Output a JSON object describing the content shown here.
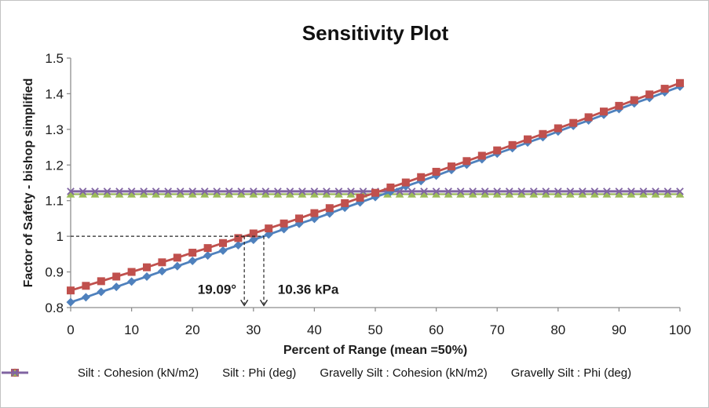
{
  "chart_data": {
    "type": "line",
    "title": "Sensitivity Plot",
    "xlabel": "Percent of Range (mean =50%)",
    "ylabel": "Factor of Safety - bishop simplified",
    "xlim": [
      0,
      100
    ],
    "ylim": [
      0.8,
      1.5
    ],
    "grid": false,
    "legend_position": "bottom",
    "x_ticks": [
      0,
      10,
      20,
      30,
      40,
      50,
      60,
      70,
      80,
      90,
      100
    ],
    "y_tick_values": [
      0.8,
      0.9,
      1.0,
      1.1,
      1.2,
      1.3,
      1.4,
      1.5
    ],
    "y_tick_labels": [
      "0.8",
      "0.9",
      "1",
      "1.1",
      "1.2",
      "1.3",
      "1.4",
      "1.5"
    ],
    "axis_color": "#8e8e8e",
    "series": [
      {
        "name": "Silt : Cohesion (kN/m2)",
        "color": "#4F81BD",
        "marker": "diamond",
        "x_start": 0,
        "x_step": 2.5,
        "values": [
          0.815,
          0.829,
          0.844,
          0.858,
          0.873,
          0.887,
          0.902,
          0.916,
          0.931,
          0.946,
          0.96,
          0.975,
          0.99,
          1.005,
          1.02,
          1.035,
          1.049,
          1.064,
          1.08,
          1.095,
          1.11,
          1.125,
          1.14,
          1.155,
          1.17,
          1.186,
          1.201,
          1.216,
          1.232,
          1.247,
          1.263,
          1.278,
          1.294,
          1.31,
          1.325,
          1.341,
          1.357,
          1.373,
          1.388,
          1.404,
          1.42
        ]
      },
      {
        "name": "Silt : Phi (deg)",
        "color": "#C0504D",
        "marker": "square",
        "x_start": 0,
        "x_step": 2.5,
        "values": [
          0.848,
          0.861,
          0.874,
          0.887,
          0.9,
          0.913,
          0.927,
          0.94,
          0.954,
          0.967,
          0.981,
          0.995,
          1.008,
          1.022,
          1.036,
          1.05,
          1.065,
          1.079,
          1.093,
          1.108,
          1.122,
          1.137,
          1.151,
          1.166,
          1.181,
          1.196,
          1.211,
          1.226,
          1.241,
          1.256,
          1.272,
          1.287,
          1.303,
          1.318,
          1.334,
          1.35,
          1.366,
          1.382,
          1.398,
          1.414,
          1.43
        ]
      },
      {
        "name": "Gravelly Silt : Cohesion (kN/m2)",
        "color": "#9BBB59",
        "marker": "triangle",
        "x_start": 0,
        "x_step": 2,
        "x_end": 100,
        "constant": 1.118
      },
      {
        "name": "Gravelly Silt : Phi (deg)",
        "color": "#8064A2",
        "marker": "x",
        "x_start": 0,
        "x_step": 2,
        "x_end": 100,
        "constant": 1.126
      }
    ],
    "annotations": {
      "reference_value": 1.0,
      "hline": {
        "y": 1.0,
        "x_from": 0,
        "x_to": 31.7
      },
      "drop_arrows": [
        {
          "x": 28.5,
          "from_y": 1.0,
          "to_y": 0.806
        },
        {
          "x": 31.7,
          "from_y": 1.0,
          "to_y": 0.806
        }
      ],
      "labels": [
        {
          "text": "19.09°",
          "x": 27.2,
          "y": 0.838,
          "anchor": "end"
        },
        {
          "text": "10.36 kPa",
          "x": 34.0,
          "y": 0.838,
          "anchor": "start"
        }
      ],
      "line_color": "#262626"
    }
  }
}
